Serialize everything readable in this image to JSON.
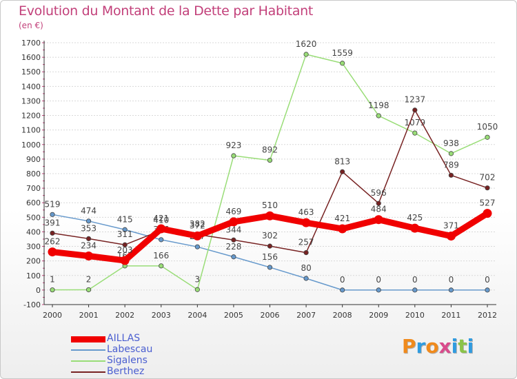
{
  "header": {
    "title": "Evolution du Montant de la Dette par Habitant",
    "subtitle": "(en €)"
  },
  "logo": {
    "text": "Proxiti",
    "colors": [
      "#f08a1c",
      "#2f9be0",
      "#f08a1c",
      "#d94b8c",
      "#2f9be0",
      "#8bc34a",
      "#2f9be0"
    ]
  },
  "chart_data": {
    "type": "line",
    "x": [
      "2000",
      "2001",
      "2002",
      "2003",
      "2004",
      "2005",
      "2006",
      "2007",
      "2008",
      "2009",
      "2010",
      "2011",
      "2012"
    ],
    "ylim": [
      -100,
      1700
    ],
    "yticks": [
      -100,
      0,
      100,
      200,
      300,
      400,
      500,
      600,
      700,
      800,
      900,
      1000,
      1100,
      1200,
      1300,
      1400,
      1500,
      1600,
      1700
    ],
    "grid": "horizontal",
    "legend_position": "bottom-left",
    "series": [
      {
        "name": "AILLAS",
        "color": "#f00000",
        "values": [
          262,
          234,
          203,
          421,
          372,
          469,
          510,
          463,
          421,
          484,
          425,
          371,
          527
        ]
      },
      {
        "name": "Labescau",
        "color": "#6699cc",
        "values": [
          519,
          474,
          415,
          346,
          297,
          228,
          156,
          80,
          0,
          0,
          0,
          0,
          0
        ]
      },
      {
        "name": "Sigalens",
        "color": "#99dd77",
        "values": [
          1,
          2,
          166,
          166,
          3,
          923,
          892,
          1620,
          1559,
          1198,
          1079,
          938,
          1050
        ]
      },
      {
        "name": "Berthez",
        "color": "#772222",
        "values": [
          391,
          353,
          311,
          410,
          382,
          344,
          302,
          257,
          813,
          596,
          1237,
          789,
          702
        ]
      }
    ]
  }
}
